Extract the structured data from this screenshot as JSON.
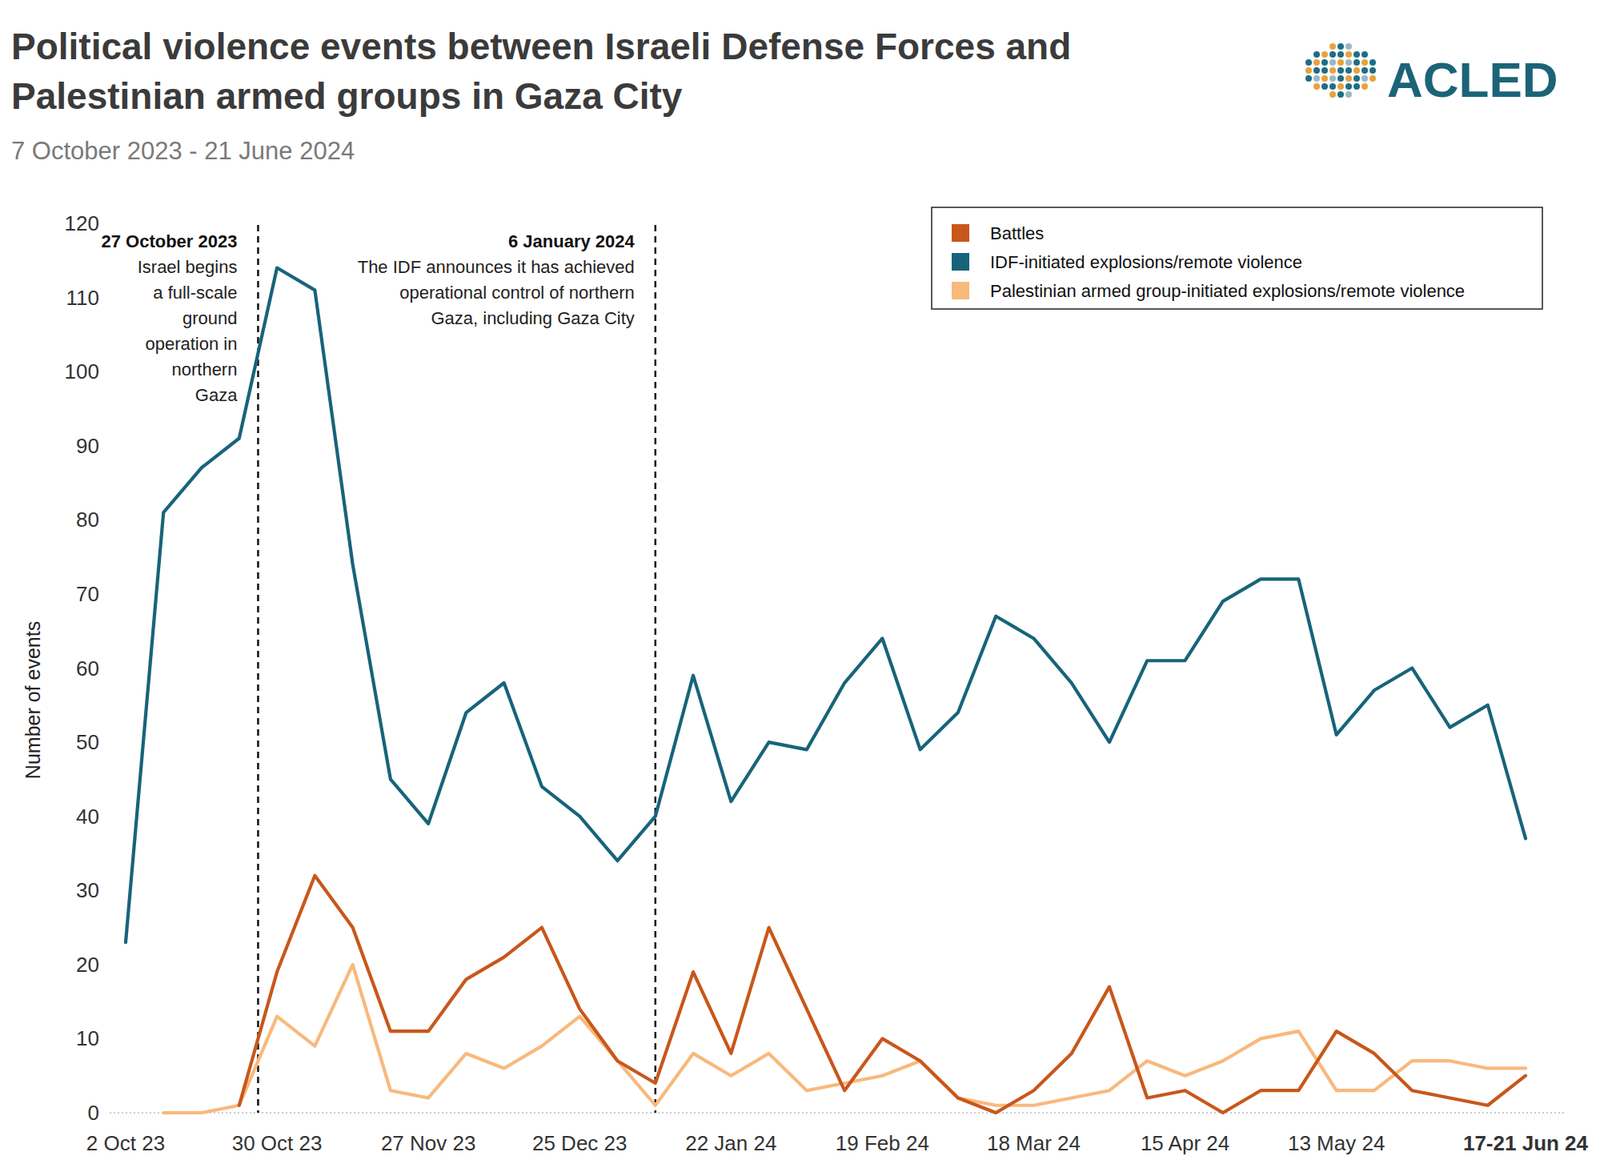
{
  "chart_data": {
    "type": "line",
    "title": "Political violence events between Israeli Defense Forces and Palestinian armed groups in Gaza City",
    "subtitle": "7 October 2023 - 21 June 2024",
    "logo_text": "ACLED",
    "y_label": "Number of events",
    "categories": [
      "2 Oct 23",
      null,
      null,
      null,
      "30 Oct 23",
      null,
      null,
      null,
      "27 Nov 23",
      null,
      null,
      null,
      "25 Dec 23",
      null,
      null,
      null,
      "22 Jan 24",
      null,
      null,
      null,
      "19 Feb 24",
      null,
      null,
      null,
      "18 Mar 24",
      null,
      null,
      null,
      "15 Apr 24",
      null,
      null,
      null,
      "13 May 24",
      null,
      null,
      null,
      null,
      "17-21 Jun 24"
    ],
    "series": [
      {
        "name": "Battles",
        "color": "#c8571b",
        "values": [
          null,
          null,
          null,
          1,
          19,
          32,
          25,
          11,
          11,
          18,
          21,
          25,
          14,
          7,
          4,
          19,
          8,
          25,
          14,
          3,
          10,
          7,
          2,
          0,
          3,
          8,
          17,
          2,
          3,
          0,
          3,
          3,
          11,
          8,
          3,
          2,
          1,
          5
        ]
      },
      {
        "name": "IDF-initiated explosions/remote violence",
        "color": "#17647a",
        "values": [
          23,
          81,
          87,
          91,
          114,
          111,
          74,
          45,
          39,
          54,
          58,
          44,
          40,
          34,
          40,
          59,
          42,
          50,
          49,
          58,
          64,
          49,
          54,
          67,
          64,
          58,
          50,
          61,
          61,
          69,
          72,
          72,
          51,
          57,
          60,
          52,
          55,
          37
        ]
      },
      {
        "name": "Palestinian armed group-initiated explosions/remote violence",
        "color": "#f8b97c",
        "values": [
          null,
          0,
          0,
          1,
          13,
          9,
          20,
          3,
          2,
          8,
          6,
          9,
          13,
          7,
          1,
          8,
          5,
          8,
          3,
          4,
          5,
          7,
          2,
          1,
          1,
          2,
          3,
          7,
          5,
          7,
          10,
          11,
          3,
          3,
          7,
          7,
          6,
          6
        ]
      }
    ],
    "annotations": [
      {
        "x": 3.5,
        "title": "27 October 2023",
        "lines": [
          "Israel begins",
          "a full-scale",
          "ground",
          "operation in",
          "northern",
          "Gaza"
        ]
      },
      {
        "x": 14,
        "title": "6 January 2024",
        "lines": [
          "The IDF announces it has achieved",
          "operational control of northern",
          "Gaza, including Gaza City"
        ]
      }
    ],
    "ylim": [
      0,
      120
    ],
    "yticks": [
      0,
      10,
      20,
      30,
      40,
      50,
      60,
      70,
      80,
      90,
      100,
      110,
      120
    ],
    "grid": false,
    "legend": "top-right"
  }
}
